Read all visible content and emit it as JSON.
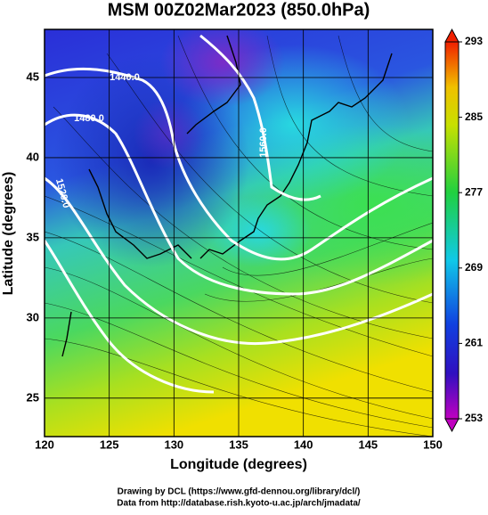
{
  "title": "MSM 00Z02Mar2023 (850.0hPa)",
  "x_axis": {
    "label": "Longitude (degrees)",
    "lim": [
      120,
      150
    ],
    "ticks": [
      120,
      125,
      130,
      135,
      140,
      145,
      150
    ]
  },
  "y_axis": {
    "label": "Latitude  (degrees)",
    "lim": [
      22.6,
      48
    ],
    "ticks": [
      25,
      30,
      35,
      40,
      45
    ]
  },
  "colorbar": {
    "lim": [
      253,
      293
    ],
    "ticks": [
      253,
      261,
      269,
      277,
      285,
      293
    ]
  },
  "contour_labels": [
    "1440.0",
    "1480.0",
    "1520.0",
    "1560.0"
  ],
  "footer": [
    "Drawing by DCL (https://www.gfd-dennou.org/library/dcl/)",
    "Data from http://database.rish.kyoto-u.ac.jp/arch/jmadata/"
  ]
}
